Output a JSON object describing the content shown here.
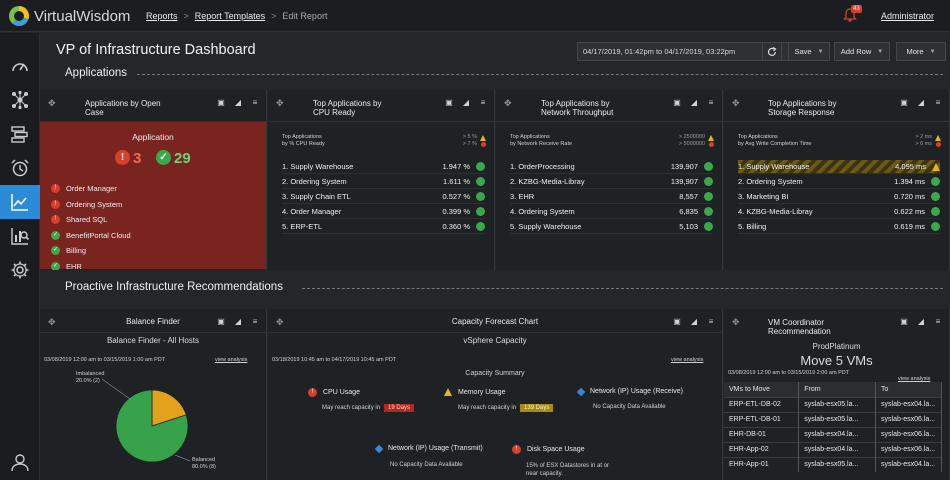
{
  "app": {
    "name": "VirtualWisdom"
  },
  "breadcrumb": {
    "reports": "Reports",
    "templates": "Report Templates",
    "current": "Edit Report",
    "sep1": ">",
    "sep2": ">"
  },
  "header": {
    "notifications": "43",
    "user": "Administrator"
  },
  "sidebar": {
    "items": [
      "gauge-icon",
      "topology-icon",
      "layers-icon",
      "alarm-clock-icon",
      "chart-icon",
      "analytics-icon",
      "gear-icon",
      "user-icon"
    ],
    "active": "chart-icon"
  },
  "dashboard": {
    "title": "VP of Infrastructure Dashboard",
    "date_range": "04/17/2019, 01:42pm to 04/17/2019, 03:22pm",
    "save": "Save",
    "add_row": "Add Row",
    "more": "More"
  },
  "sections": {
    "applications": "Applications",
    "proactive": "Proactive Infrastructure Recommendations"
  },
  "open_case": {
    "title_l1": "Applications by Open",
    "title_l2": "Case",
    "label": "Application",
    "errors": "3",
    "ok": "29",
    "apps": [
      {
        "name": "Order Manager",
        "status": "error"
      },
      {
        "name": "Ordering System",
        "status": "error"
      },
      {
        "name": "Shared SQL",
        "status": "error"
      },
      {
        "name": "BenefitPortal Cloud",
        "status": "ok"
      },
      {
        "name": "Billing",
        "status": "ok"
      },
      {
        "name": "EHR",
        "status": "ok"
      }
    ]
  },
  "cpu_ready": {
    "title_l1": "Top Applications by",
    "title_l2": "CPU Ready",
    "sub_l1": "Top Applications",
    "sub_l2": "by % CPU Ready",
    "thr_l1": "> 5 %",
    "thr_l2": "> 7 %",
    "rows": [
      {
        "name": "1. Supply Warehouse",
        "value": "1.947 %"
      },
      {
        "name": "2. Ordering System",
        "value": "1.611 %"
      },
      {
        "name": "3. Supply Chain ETL",
        "value": "0.527 %"
      },
      {
        "name": "4. Order Manager",
        "value": "0.399 %"
      },
      {
        "name": "5. ERP-ETL",
        "value": "0.360 %"
      }
    ]
  },
  "network_throughput": {
    "title_l1": "Top Applications by",
    "title_l2": "Network Throughput",
    "sub_l1": "Top Applications",
    "sub_l2": "by Network Receive Rate",
    "thr_l1": "> 2500000",
    "thr_l2": "> 5000000",
    "rows": [
      {
        "name": "1. OrderProcessing",
        "value": "139,907"
      },
      {
        "name": "2. KZBG-Media-Libray",
        "value": "139,907"
      },
      {
        "name": "3. EHR",
        "value": "8,557"
      },
      {
        "name": "4. Ordering System",
        "value": "6,835"
      },
      {
        "name": "5. Supply Warehouse",
        "value": "5,103"
      }
    ]
  },
  "storage_response": {
    "title_l1": "Top Applications by",
    "title_l2": "Storage Response",
    "sub_l1": "Top Applications",
    "sub_l2": "by Avg Write Completion Time",
    "thr_l1": "> 2 ms",
    "thr_l2": "> 6 ms",
    "rows": [
      {
        "name": "1. Supply Warehouse",
        "value": "4.095 ms",
        "status": "warn"
      },
      {
        "name": "2. Ordering System",
        "value": "1.394 ms",
        "status": "ok"
      },
      {
        "name": "3. Marketing BI",
        "value": "0.720 ms",
        "status": "ok"
      },
      {
        "name": "4. KZBG-Media-Libray",
        "value": "0.622 ms",
        "status": "ok"
      },
      {
        "name": "5. Billing",
        "value": "0.619 ms",
        "status": "ok"
      }
    ]
  },
  "balance_finder": {
    "title": "Balance Finder",
    "subtitle": "Balance Finder - All Hosts",
    "range": "03/08/2019 12:00 am to 03/15/2019 1:00 am PDT",
    "view": "view analysis",
    "chart_data": {
      "type": "pie",
      "categories": [
        "Imbalanced",
        "Balanced"
      ],
      "values": [
        2,
        8
      ],
      "labels": [
        "20.0% (2)",
        "80.0% (8)"
      ],
      "colors": [
        "#e3a11c",
        "#36a34a"
      ]
    }
  },
  "capacity": {
    "title": "Capacity Forecast Chart",
    "subtitle": "vSphere Capacity",
    "range": "03/18/2019 10:45 am to 04/17/2019 10:45 am PDT",
    "view": "view analysis",
    "summary": "Capacity Summary",
    "cpu": {
      "label": "CPU Usage",
      "note": "May reach capacity in",
      "days": "19 Days"
    },
    "memory": {
      "label": "Memory Usage",
      "note": "May reach capacity in",
      "days": "139 Days"
    },
    "net_rx": {
      "label": "Network (IP) Usage (Receive)",
      "note": "No Capacity Data Available"
    },
    "net_tx": {
      "label": "Network (IP) Usage (Transmit)",
      "note": "No Capacity Data Available"
    },
    "disk": {
      "label": "Disk Space Usage",
      "note_l1": "15% of ESX Datastores in at or",
      "note_l2": "near capacity."
    }
  },
  "vm_coord": {
    "title_l1": "VM Coordinator",
    "title_l2": "Recommendation",
    "subtitle": "ProdPlatinum",
    "headline": "Move 5 VMs",
    "range": "03/08/2019 12:00 am to 03/15/2019 2:00 am PDT",
    "view": "view analysis",
    "columns": [
      "VMs to Move",
      "From",
      "To"
    ],
    "rows": [
      [
        "ERP-ETL-DB-02",
        "syslab-esx05.la...",
        "syslab-esx04.la..."
      ],
      [
        "ERP-ETL-DB-01",
        "syslab-esx05.la...",
        "syslab-esx06.la..."
      ],
      [
        "EHR-DB-01",
        "syslab-esx04.la...",
        "syslab-esx06.la..."
      ],
      [
        "EHR-App-02",
        "syslab-esx04.la...",
        "syslab-esx06.la..."
      ],
      [
        "EHR-App-01",
        "syslab-esx05.la...",
        "syslab-esx04.la..."
      ]
    ]
  }
}
